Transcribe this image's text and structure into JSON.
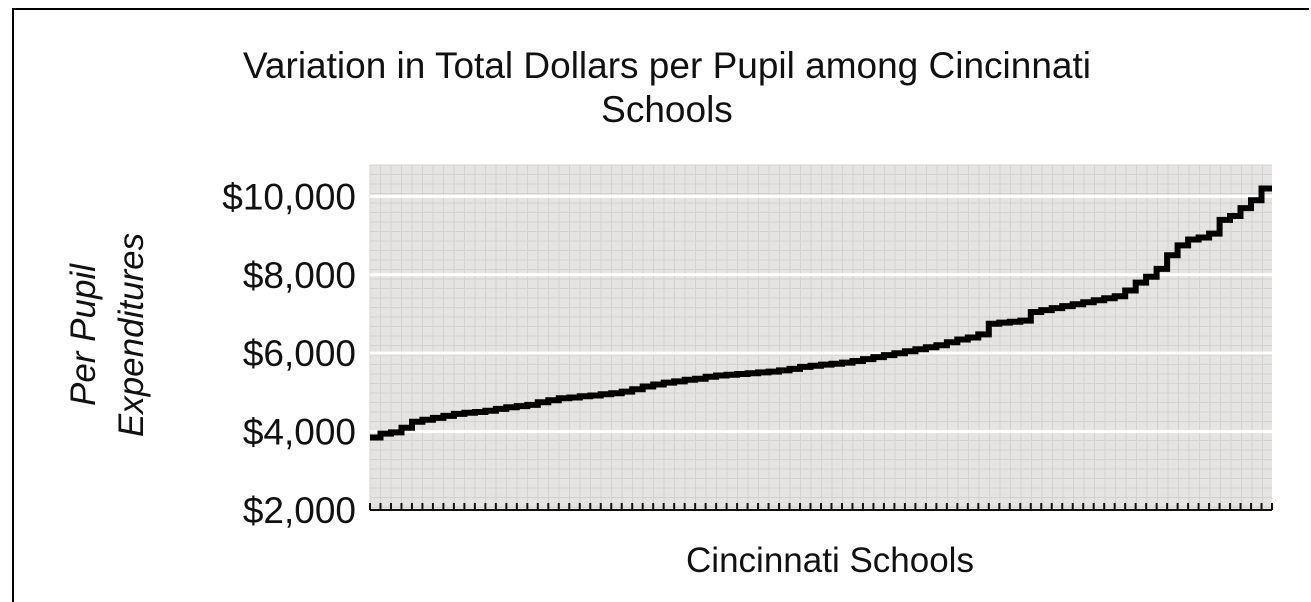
{
  "chart_data": {
    "type": "line",
    "title_line1": "Variation in Total Dollars per Pupil among Cincinnati",
    "title_line2": "Schools",
    "xlabel": "Cincinnati Schools",
    "ylabel_line1": "Per Pupil",
    "ylabel_line2": "Expenditures",
    "ylim": [
      2000,
      10800
    ],
    "yticks": [
      2000,
      4000,
      6000,
      8000,
      10000
    ],
    "ytick_labels": [
      "$2,000",
      "$4,000",
      "$6,000",
      "$8,000",
      "$10,000"
    ],
    "grid": true,
    "step": true,
    "series": [
      {
        "values": [
          3850,
          3950,
          3980,
          4100,
          4250,
          4300,
          4350,
          4400,
          4450,
          4480,
          4500,
          4530,
          4580,
          4620,
          4650,
          4680,
          4750,
          4800,
          4850,
          4870,
          4900,
          4920,
          4950,
          4980,
          5020,
          5080,
          5150,
          5200,
          5250,
          5280,
          5320,
          5350,
          5400,
          5430,
          5450,
          5470,
          5490,
          5510,
          5530,
          5560,
          5600,
          5650,
          5680,
          5710,
          5730,
          5760,
          5800,
          5850,
          5900,
          5950,
          6000,
          6050,
          6100,
          6150,
          6200,
          6280,
          6350,
          6400,
          6480,
          6750,
          6780,
          6800,
          6830,
          7050,
          7100,
          7150,
          7200,
          7250,
          7300,
          7350,
          7400,
          7450,
          7600,
          7800,
          7950,
          8150,
          8500,
          8750,
          8900,
          8950,
          9050,
          9400,
          9500,
          9700,
          9900,
          10200
        ]
      }
    ]
  }
}
